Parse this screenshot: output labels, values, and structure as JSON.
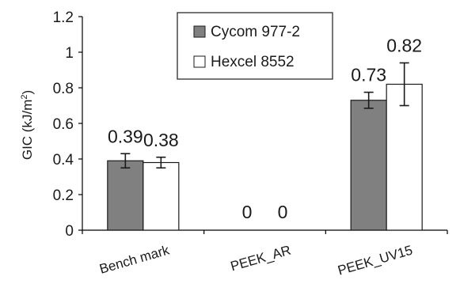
{
  "chart_data": {
    "type": "bar",
    "categories": [
      "Bench mark",
      "PEEK_AR",
      "PEEK_UV15"
    ],
    "series": [
      {
        "name": "Cycom 977-2",
        "values": [
          0.39,
          0,
          0.73
        ],
        "labels": [
          "0.39",
          "0",
          "0.73"
        ],
        "error": [
          0.04,
          0,
          0.045
        ],
        "color": "#808080"
      },
      {
        "name": "Hexcel 8552",
        "values": [
          0.38,
          0,
          0.82
        ],
        "labels": [
          "0.38",
          "0",
          "0.82"
        ],
        "error": [
          0.03,
          0,
          0.12
        ],
        "color": "#ffffff"
      }
    ],
    "ylabel_main": "GIC (kJ/m",
    "ylabel_sup": "2",
    "ylabel_tail": ")",
    "xlabel": "",
    "ylim": [
      0,
      1.2
    ],
    "yticks": [
      0,
      0.2,
      0.4,
      0.6,
      0.8,
      1,
      1.2
    ],
    "ytick_labels": [
      "0",
      "0.2",
      "0.4",
      "0.6",
      "0.8",
      "1",
      "1.2"
    ],
    "grid": false,
    "legend_position": "top-center",
    "border_color": "#000000"
  }
}
